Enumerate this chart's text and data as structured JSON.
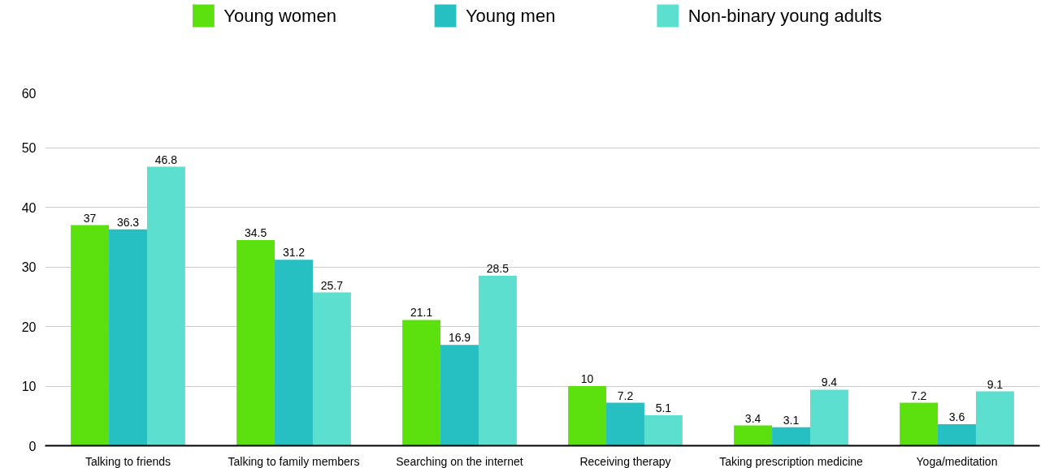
{
  "chart_data": {
    "type": "bar",
    "categories": [
      "Talking to friends",
      "Talking to family members",
      "Searching on the internet",
      "Receiving therapy",
      "Taking prescription medicine",
      "Yoga/meditation"
    ],
    "series": [
      {
        "name": "Young women",
        "color": "#5ce10f",
        "values": [
          37,
          34.5,
          21.1,
          10,
          3.4,
          7.2
        ]
      },
      {
        "name": "Young men",
        "color": "#27c0c2",
        "values": [
          36.3,
          31.2,
          16.9,
          7.2,
          3.1,
          3.6
        ]
      },
      {
        "name": "Non-binary young adults",
        "color": "#5ddfcf",
        "values": [
          46.8,
          25.7,
          28.5,
          5.1,
          9.4,
          9.1
        ]
      }
    ],
    "ylim": [
      0,
      60
    ],
    "yticks": [
      0,
      10,
      20,
      30,
      40,
      50,
      60
    ],
    "grid": "y",
    "legend": "top",
    "data_labels": true
  }
}
